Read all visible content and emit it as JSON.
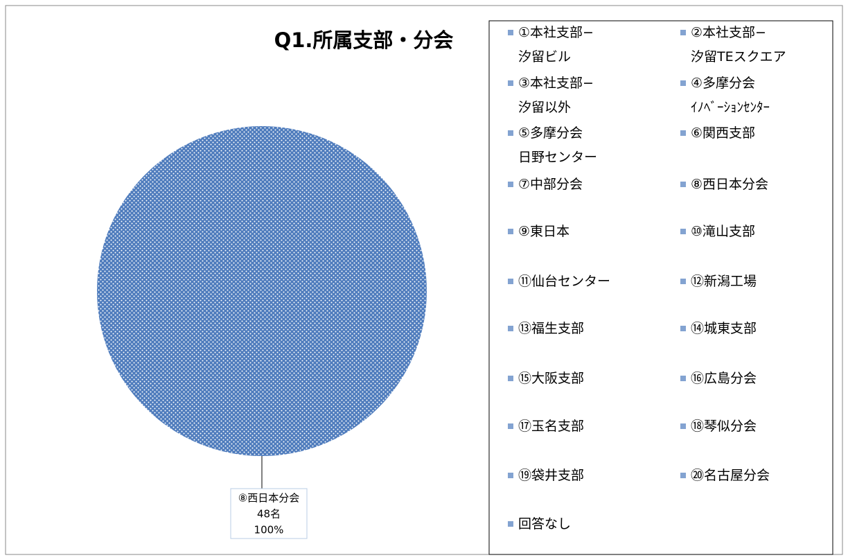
{
  "chart_data": {
    "type": "pie",
    "title": "Q1.所属支部・分会",
    "categories": [
      "①本社支部−\n汐留ビル",
      "②本社支部−\n汐留TEスクエア",
      "③本社支部−\n汐留以外",
      "④多摩分会\nｲﾉﾍﾞｰｼｮﾝｾﾝﾀｰ",
      "⑤多摩分会\n日野センター",
      "⑥関西支部",
      "⑦中部分会",
      "⑧西日本分会",
      "⑨東日本",
      "⑩滝山支部",
      "⑪仙台センター",
      "⑫新潟工場",
      "⑬福生支部",
      "⑭城東支部",
      "⑮大阪支部",
      "⑯広島分会",
      "⑰玉名支部",
      "⑱琴似分会",
      "⑲袋井支部",
      "⑳名古屋分会",
      "回答なし"
    ],
    "values": [
      0,
      0,
      0,
      0,
      0,
      0,
      0,
      48,
      0,
      0,
      0,
      0,
      0,
      0,
      0,
      0,
      0,
      0,
      0,
      0,
      0
    ],
    "value_labels": [
      null,
      null,
      null,
      null,
      null,
      null,
      null,
      "48名",
      null,
      null,
      null,
      null,
      null,
      null,
      null,
      null,
      null,
      null,
      null,
      null,
      null
    ],
    "percent_labels": [
      null,
      null,
      null,
      null,
      null,
      null,
      null,
      "100%",
      null,
      null,
      null,
      null,
      null,
      null,
      null,
      null,
      null,
      null,
      null,
      null,
      null
    ],
    "label_name": "⑧西日本分会",
    "color": "#4f7cbd"
  }
}
